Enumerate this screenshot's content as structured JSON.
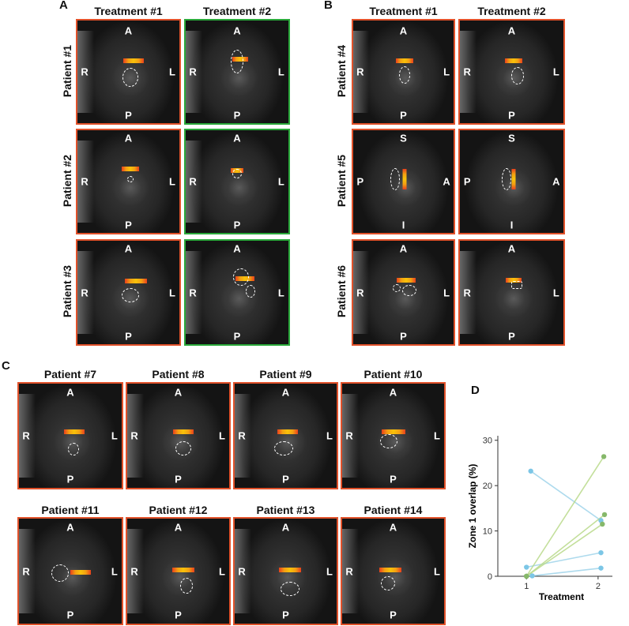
{
  "panels": {
    "A": "A",
    "B": "B",
    "C": "C",
    "D": "D"
  },
  "headers": {
    "treatment1": "Treatment #1",
    "treatment2": "Treatment #2"
  },
  "patients": {
    "p1": "Patient #1",
    "p2": "Patient #2",
    "p3": "Patient #3",
    "p4": "Patient #4",
    "p5": "Patient #5",
    "p6": "Patient #6",
    "p7": "Patient #7",
    "p8": "Patient #8",
    "p9": "Patient #9",
    "p10": "Patient #10",
    "p11": "Patient #11",
    "p12": "Patient #12",
    "p13": "Patient #13",
    "p14": "Patient #14"
  },
  "orientation": {
    "A": "A",
    "P": "P",
    "R": "R",
    "L": "L",
    "S": "S",
    "I": "I"
  },
  "colors": {
    "border_red": "#e1512a",
    "border_green": "#2aa83a",
    "heat": "#f8c20a",
    "line_blue": "#9fd3ea",
    "line_green": "#b9d98a",
    "point_blue": "#7cc6e6",
    "point_green": "#86b86a"
  },
  "chart_data": {
    "type": "line",
    "xlabel": "Treatment",
    "ylabel": "Zone 1 overlap (%)",
    "x_ticks": [
      "1",
      "2"
    ],
    "y_ticks": [
      "0",
      "10",
      "20",
      "30"
    ],
    "ylim": [
      0,
      31
    ],
    "grid": false,
    "series": [
      {
        "group": "blue",
        "x": [
          1,
          2
        ],
        "y": [
          23.2,
          12.3
        ]
      },
      {
        "group": "blue",
        "x": [
          1,
          2
        ],
        "y": [
          2.0,
          5.2
        ]
      },
      {
        "group": "blue",
        "x": [
          1,
          2
        ],
        "y": [
          0.1,
          1.8
        ]
      },
      {
        "group": "green",
        "x": [
          1,
          2
        ],
        "y": [
          0.0,
          26.4
        ]
      },
      {
        "group": "green",
        "x": [
          1,
          2
        ],
        "y": [
          0.0,
          13.6
        ]
      },
      {
        "group": "green",
        "x": [
          1,
          2
        ],
        "y": [
          0.0,
          11.5
        ]
      }
    ]
  }
}
